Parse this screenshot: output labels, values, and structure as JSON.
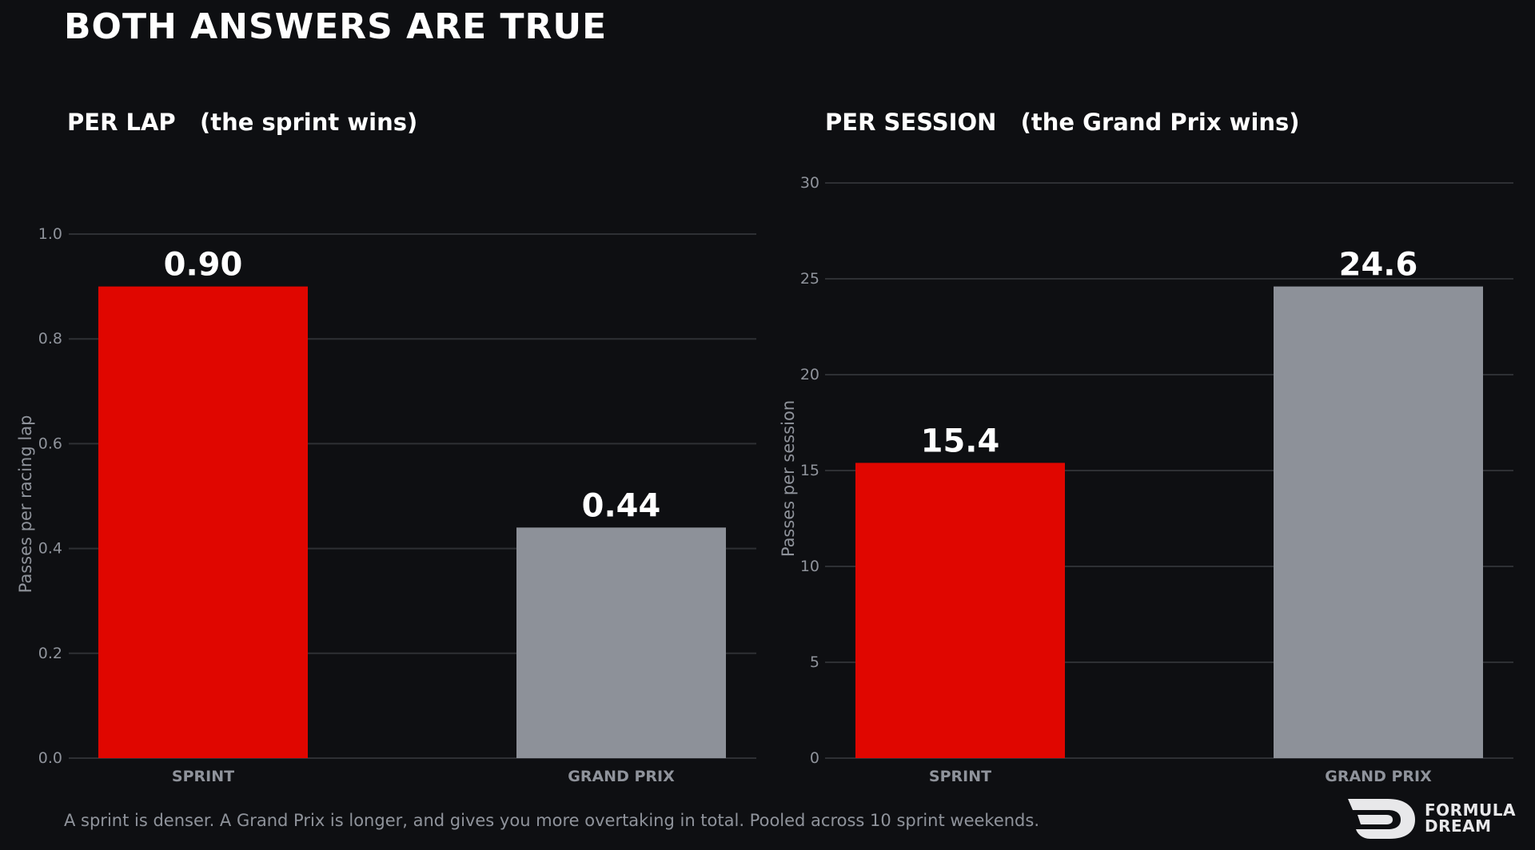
{
  "title": "BOTH ANSWERS ARE TRUE",
  "footnote": "A sprint is denser. A Grand Prix is longer, and gives you more overtaking in total. Pooled across 10 sprint weekends.",
  "logo": {
    "line1": "FORMULA",
    "line2": "DREAM"
  },
  "colors": {
    "background": "#0e0f12",
    "sprint": "#e00600",
    "grand_prix": "#8d9199",
    "grid": "#2e3034",
    "tick_text": "#8f939b"
  },
  "chart_data": [
    {
      "type": "bar",
      "title": "PER LAP   (the sprint wins)",
      "categories": [
        "SPRINT",
        "GRAND PRIX"
      ],
      "values": [
        0.9,
        0.44
      ],
      "value_labels": [
        "0.90",
        "0.44"
      ],
      "bar_colors": [
        "#e00600",
        "#8d9199"
      ],
      "xlabel": "",
      "ylabel": "Passes per racing lap",
      "ylim": [
        0,
        1.0
      ],
      "yticks": [
        0.0,
        0.2,
        0.4,
        0.6,
        0.8,
        1.0
      ],
      "ytick_labels": [
        "0.0",
        "0.2",
        "0.4",
        "0.6",
        "0.8",
        "1.0"
      ],
      "grid": true,
      "legend": "none"
    },
    {
      "type": "bar",
      "title": "PER SESSION   (the Grand Prix wins)",
      "categories": [
        "SPRINT",
        "GRAND PRIX"
      ],
      "values": [
        15.4,
        24.6
      ],
      "value_labels": [
        "15.4",
        "24.6"
      ],
      "bar_colors": [
        "#e00600",
        "#8d9199"
      ],
      "xlabel": "",
      "ylabel": "Passes per session",
      "ylim": [
        0,
        30
      ],
      "yticks": [
        0,
        5,
        10,
        15,
        20,
        25,
        30
      ],
      "ytick_labels": [
        "0",
        "5",
        "10",
        "15",
        "20",
        "25",
        "30"
      ],
      "grid": true,
      "legend": "none"
    }
  ]
}
